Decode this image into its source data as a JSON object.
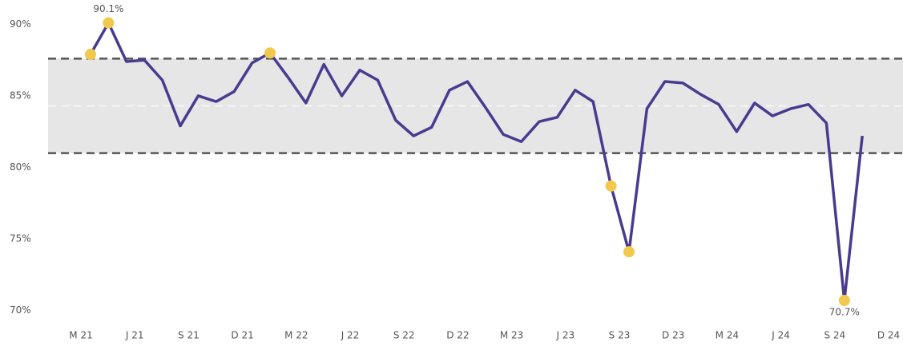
{
  "chart_data": {
    "type": "line",
    "categories": [
      "M 21",
      null,
      null,
      "J 21",
      null,
      null,
      "S 21",
      null,
      null,
      "D 21",
      null,
      null,
      "M 22",
      null,
      null,
      "J 22",
      null,
      null,
      "S 22",
      null,
      null,
      "D 22",
      null,
      null,
      "M 23",
      null,
      null,
      "J 23",
      null,
      null,
      "S 23",
      null,
      null,
      "D 23",
      null,
      null,
      "M 24",
      null,
      null,
      "J 24",
      null,
      null,
      "S 24",
      null,
      null,
      "D 24"
    ],
    "series": [
      {
        "color": "#4a3b8f",
        "values": [
          87.9,
          90.1,
          87.4,
          87.5,
          86.1,
          82.9,
          85.0,
          84.6,
          85.3,
          87.3,
          88.0,
          86.3,
          84.5,
          87.2,
          85.0,
          86.8,
          86.1,
          83.3,
          82.2,
          82.8,
          85.4,
          86.0,
          84.2,
          82.3,
          81.8,
          83.2,
          83.5,
          85.4,
          84.6,
          78.7,
          74.1,
          84.1,
          86.0,
          85.9,
          85.1,
          84.4,
          82.5,
          84.5,
          83.6,
          84.1,
          84.4,
          83.1,
          70.7,
          82.2,
          null,
          null
        ],
        "value_labels": [
          null,
          "90.1%",
          null,
          null,
          null,
          null,
          null,
          null,
          null,
          null,
          null,
          null,
          null,
          null,
          null,
          null,
          null,
          null,
          null,
          null,
          null,
          null,
          null,
          null,
          null,
          null,
          null,
          null,
          null,
          null,
          null,
          null,
          null,
          null,
          null,
          null,
          null,
          null,
          null,
          null,
          null,
          null,
          "70.7%",
          null,
          null,
          null
        ]
      }
    ],
    "control_limits": {
      "upper": 87.6,
      "mean": 84.3,
      "lower": 81.0,
      "band_color": "#e6e6e6",
      "line_color": "#555555"
    },
    "outlier_color": "#f2c94c",
    "ylim": [
      68.8,
      91.7
    ],
    "yticks": [
      {
        "value": 70,
        "label": "70%"
      },
      {
        "value": 75,
        "label": "75%"
      },
      {
        "value": 80,
        "label": "80%"
      },
      {
        "value": 85,
        "label": "85%"
      },
      {
        "value": 90,
        "label": "90%"
      }
    ]
  }
}
